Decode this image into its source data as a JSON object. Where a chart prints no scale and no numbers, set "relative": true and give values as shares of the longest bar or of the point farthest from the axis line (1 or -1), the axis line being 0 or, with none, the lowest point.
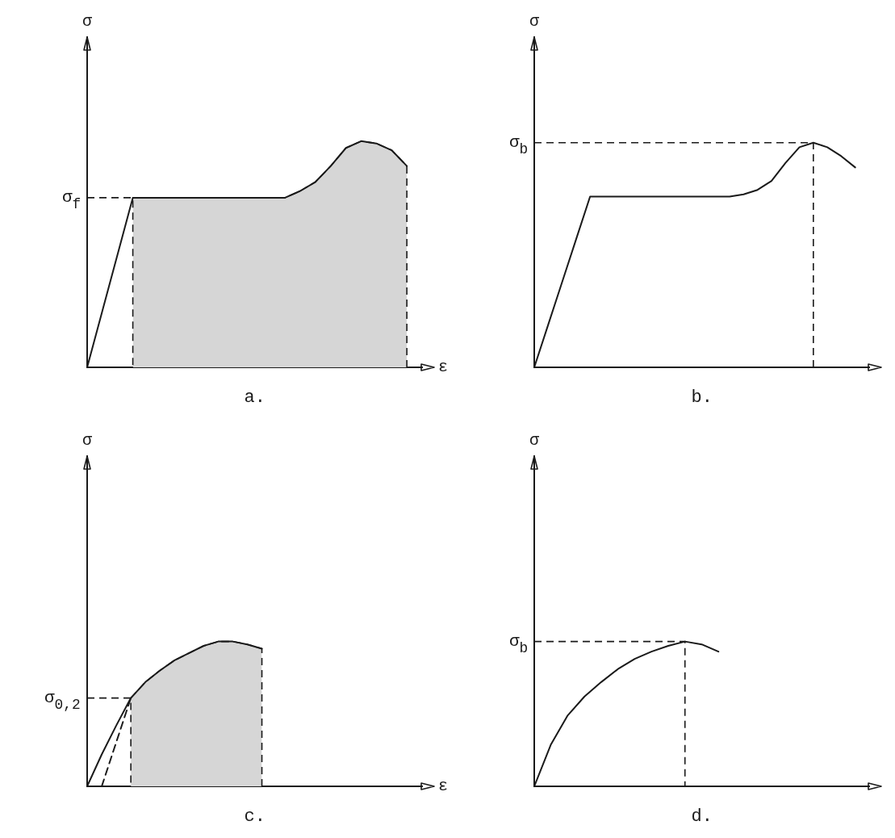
{
  "chart_data": [
    {
      "type": "line",
      "title": "a.",
      "xlabel": "ε",
      "ylabel": "σ",
      "relative": true,
      "ylim": [
        0,
        1.46
      ],
      "categories": [
        null,
        null,
        null,
        null,
        null,
        null,
        null,
        null,
        null,
        null,
        null,
        null,
        null,
        null,
        null,
        null,
        null,
        null,
        null,
        null,
        null,
        null,
        null
      ],
      "series": [
        {
          "color": "#1a1a1a",
          "values": [
            0,
            0.25,
            0.5,
            0.75,
            0.75,
            0.75,
            0.75,
            0.75,
            0.75,
            0.75,
            0.75,
            0.75,
            0.75,
            0.75,
            0.78,
            0.82,
            0.89,
            0.97,
            1,
            0.99,
            0.96,
            0.89,
            null
          ]
        },
        {
          "type": "area",
          "color": "#d6d6d6",
          "line_style": "dashed",
          "values": [
            null,
            null,
            null,
            0.75,
            0.75,
            0.75,
            0.75,
            0.75,
            0.75,
            0.75,
            0.75,
            0.75,
            0.75,
            0.75,
            0.78,
            0.82,
            0.89,
            0.97,
            1,
            0.99,
            0.96,
            0.89,
            null
          ]
        }
      ],
      "ref_lines": [
        {
          "axis": "y",
          "value": 0.75,
          "label": "σ$_{f}$",
          "line_style": "dashed"
        }
      ]
    },
    {
      "type": "line",
      "title": "b.",
      "ylabel": "σ",
      "relative": true,
      "ylim": [
        0,
        1.47
      ],
      "categories": [
        null,
        null,
        null,
        null,
        null,
        null,
        null,
        null,
        null,
        null,
        null,
        null,
        null,
        null,
        null,
        null,
        null,
        null,
        null,
        null,
        null,
        null,
        null,
        null,
        null
      ],
      "series": [
        {
          "color": "#1a1a1a",
          "values": [
            0,
            0.19,
            0.38,
            0.57,
            0.76,
            0.76,
            0.76,
            0.76,
            0.76,
            0.76,
            0.76,
            0.76,
            0.76,
            0.76,
            0.76,
            0.77,
            0.79,
            0.83,
            0.91,
            0.98,
            1,
            0.98,
            0.94,
            0.89,
            null
          ]
        }
      ],
      "ref_lines": [
        {
          "axis": "y",
          "value": 1,
          "label": "σ$_{b}$",
          "line_style": "dashed"
        }
      ]
    },
    {
      "type": "line",
      "title": "c.",
      "xlabel": "ε",
      "ylabel": "σ",
      "relative": true,
      "ylim": [
        0,
        2.28
      ],
      "categories": [
        null,
        null,
        null,
        null,
        null,
        null,
        null,
        null,
        null,
        null,
        null,
        null,
        null,
        null,
        null,
        null,
        null,
        null,
        null,
        null,
        null,
        null,
        null,
        null
      ],
      "series": [
        {
          "color": "#1a1a1a",
          "values": [
            0,
            0.22,
            0.42,
            0.61,
            0.72,
            0.8,
            0.87,
            0.92,
            0.97,
            1,
            1,
            0.98,
            0.95,
            null,
            null,
            null,
            null,
            null,
            null,
            null,
            null,
            null,
            null,
            null
          ]
        },
        {
          "color": "#1a1a1a",
          "line_style": "dashed",
          "values": [
            null,
            0,
            null,
            0.61,
            null,
            null,
            null,
            null,
            null,
            null,
            null,
            null,
            null,
            null,
            null,
            null,
            null,
            null,
            null,
            null,
            null,
            null,
            null,
            null
          ]
        },
        {
          "type": "area",
          "color": "#d6d6d6",
          "line_style": "dashed",
          "values": [
            null,
            null,
            null,
            0.61,
            0.72,
            0.8,
            0.87,
            0.92,
            0.97,
            1,
            1,
            0.98,
            0.95,
            null,
            null,
            null,
            null,
            null,
            null,
            null,
            null,
            null,
            null,
            null
          ]
        }
      ],
      "ref_lines": [
        {
          "axis": "y",
          "value": 0.61,
          "label": "σ$_{0,2}$",
          "line_style": "dashed"
        }
      ]
    },
    {
      "type": "line",
      "title": "d.",
      "ylabel": "σ",
      "relative": true,
      "ylim": [
        0,
        2.28
      ],
      "categories": [
        null,
        null,
        null,
        null,
        null,
        null,
        null,
        null,
        null,
        null,
        null,
        null,
        null,
        null,
        null,
        null,
        null,
        null,
        null,
        null,
        null
      ],
      "series": [
        {
          "color": "#1a1a1a",
          "values": [
            0,
            0.29,
            0.49,
            0.62,
            0.72,
            0.81,
            0.88,
            0.93,
            0.97,
            1,
            0.98,
            0.93,
            null,
            null,
            null,
            null,
            null,
            null,
            null,
            null,
            null
          ]
        }
      ],
      "ref_lines": [
        {
          "axis": "y",
          "value": 1,
          "label": "σ$_{b}$",
          "line_style": "dashed"
        }
      ]
    }
  ]
}
